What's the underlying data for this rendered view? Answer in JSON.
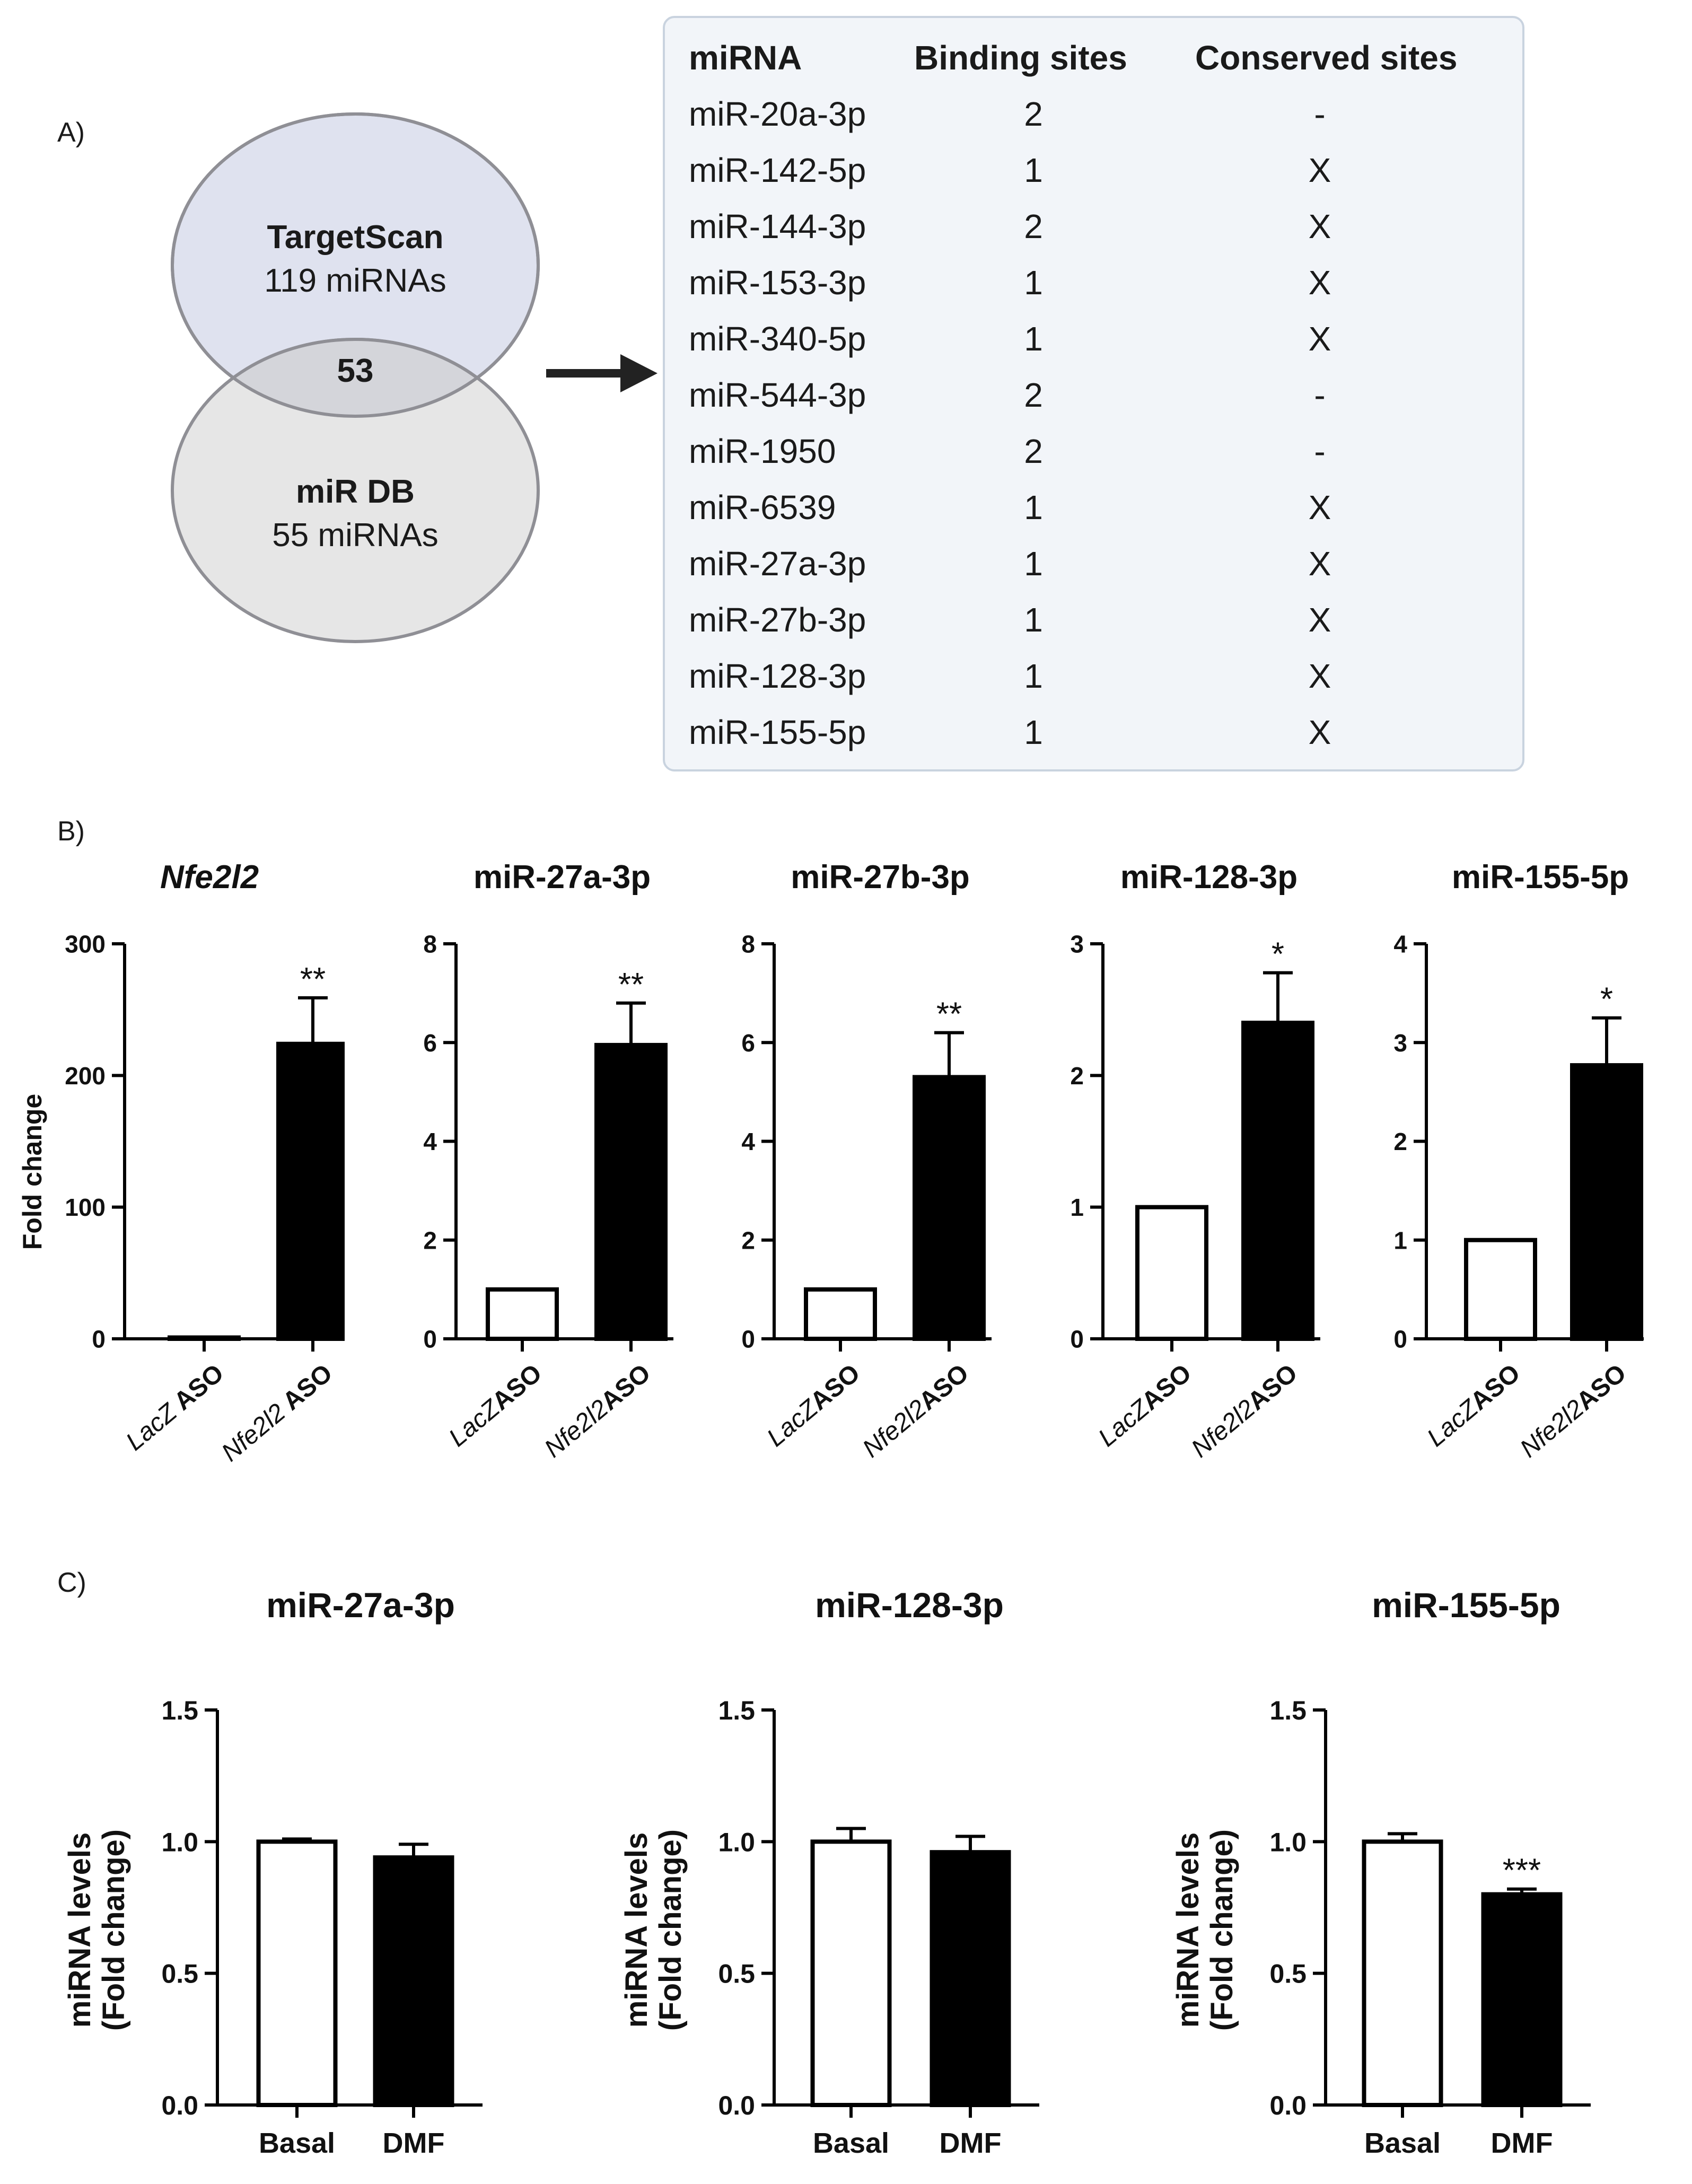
{
  "panels": {
    "a": "A)",
    "b": "B)",
    "c": "C)"
  },
  "venn": {
    "top_title": "TargetScan",
    "top_sub": "119 miRNAs",
    "overlap": "53",
    "bottom_title": "miR DB",
    "bottom_sub": "55 miRNAs"
  },
  "table": {
    "headers": [
      "miRNA",
      "Binding sites",
      "Conserved sites"
    ],
    "rows": [
      [
        "miR-20a-3p",
        "2",
        "-"
      ],
      [
        "miR-142-5p",
        "1",
        "X"
      ],
      [
        "miR-144-3p",
        "2",
        "X"
      ],
      [
        "miR-153-3p",
        "1",
        "X"
      ],
      [
        "miR-340-5p",
        "1",
        "X"
      ],
      [
        "miR-544-3p",
        "2",
        "-"
      ],
      [
        "miR-1950",
        "2",
        "-"
      ],
      [
        "miR-6539",
        "1",
        "X"
      ],
      [
        "miR-27a-3p",
        "1",
        "X"
      ],
      [
        "miR-27b-3p",
        "1",
        "X"
      ],
      [
        "miR-128-3p",
        "1",
        "X"
      ],
      [
        "miR-155-5p",
        "1",
        "X"
      ]
    ]
  },
  "chart_data": [
    {
      "id": "b1",
      "type": "bar",
      "title": "Nfe2l2",
      "title_italic": true,
      "ylabel": "Fold change",
      "ylim": [
        0,
        300
      ],
      "yticks": [
        0,
        100,
        200,
        300
      ],
      "categories": [
        "LacZ ASO",
        "Nfe2l2 ASO"
      ],
      "category_parts": [
        [
          "LacZ",
          " ASO"
        ],
        [
          "Nfe2l2",
          " ASO"
        ]
      ],
      "values": [
        1,
        224
      ],
      "errors": [
        0,
        35
      ],
      "significance": [
        "",
        "**"
      ],
      "fills": [
        "#ffffff",
        "#000000"
      ]
    },
    {
      "id": "b2",
      "type": "bar",
      "title": "miR-27a-3p",
      "ylabel": "",
      "ylim": [
        0,
        8
      ],
      "yticks": [
        0,
        2,
        4,
        6,
        8
      ],
      "categories": [
        "LacZASO",
        "Nfe2l2ASO"
      ],
      "category_parts": [
        [
          "LacZ",
          "ASO"
        ],
        [
          "Nfe2l2",
          "ASO"
        ]
      ],
      "values": [
        1,
        5.95
      ],
      "errors": [
        0,
        0.85
      ],
      "significance": [
        "",
        "**"
      ],
      "fills": [
        "#ffffff",
        "#000000"
      ]
    },
    {
      "id": "b3",
      "type": "bar",
      "title": "miR-27b-3p",
      "ylabel": "",
      "ylim": [
        0,
        8
      ],
      "yticks": [
        0,
        2,
        4,
        6,
        8
      ],
      "categories": [
        "LacZASO",
        "Nfe2l2ASO"
      ],
      "category_parts": [
        [
          "LacZ",
          "ASO"
        ],
        [
          "Nfe2l2",
          "ASO"
        ]
      ],
      "values": [
        1,
        5.3
      ],
      "errors": [
        0,
        0.9
      ],
      "significance": [
        "",
        "**"
      ],
      "fills": [
        "#ffffff",
        "#000000"
      ]
    },
    {
      "id": "b4",
      "type": "bar",
      "title": "miR-128-3p",
      "ylabel": "",
      "ylim": [
        0,
        3
      ],
      "yticks": [
        0,
        1,
        2,
        3
      ],
      "categories": [
        "LacZASO",
        "Nfe2l2ASO"
      ],
      "category_parts": [
        [
          "LacZ",
          "ASO"
        ],
        [
          "Nfe2l2",
          "ASO"
        ]
      ],
      "values": [
        1,
        2.4
      ],
      "errors": [
        0,
        0.38
      ],
      "significance": [
        "",
        "*"
      ],
      "fills": [
        "#ffffff",
        "#000000"
      ]
    },
    {
      "id": "b5",
      "type": "bar",
      "title": "miR-155-5p",
      "ylabel": "",
      "ylim": [
        0,
        4
      ],
      "yticks": [
        0,
        1,
        2,
        3,
        4
      ],
      "categories": [
        "LacZASO",
        "Nfe2l2ASO"
      ],
      "category_parts": [
        [
          "LacZ",
          "ASO"
        ],
        [
          "Nfe2l2",
          "ASO"
        ]
      ],
      "values": [
        1,
        2.77
      ],
      "errors": [
        0,
        0.48
      ],
      "significance": [
        "",
        "*"
      ],
      "fills": [
        "#ffffff",
        "#000000"
      ]
    },
    {
      "id": "c1",
      "type": "bar",
      "title": "miR-27a-3p",
      "ylabel": [
        "miRNA levels",
        "(Fold change)"
      ],
      "ylim": [
        0,
        1.5
      ],
      "yticks": [
        0.0,
        0.5,
        1.0,
        1.5
      ],
      "ytick_labels": [
        "0.0",
        "0.5",
        "1.0",
        "1.5"
      ],
      "categories": [
        "Basal",
        "DMF"
      ],
      "values": [
        1.0,
        0.94
      ],
      "errors": [
        0.01,
        0.05
      ],
      "significance": [
        "",
        ""
      ],
      "fills": [
        "#ffffff",
        "#000000"
      ]
    },
    {
      "id": "c2",
      "type": "bar",
      "title": "miR-128-3p",
      "ylabel": [
        "miRNA levels",
        "(Fold change)"
      ],
      "ylim": [
        0,
        1.5
      ],
      "yticks": [
        0.0,
        0.5,
        1.0,
        1.5
      ],
      "ytick_labels": [
        "0.0",
        "0.5",
        "1.0",
        "1.5"
      ],
      "categories": [
        "Basal",
        "DMF"
      ],
      "values": [
        1.0,
        0.96
      ],
      "errors": [
        0.05,
        0.06
      ],
      "significance": [
        "",
        ""
      ],
      "fills": [
        "#ffffff",
        "#000000"
      ]
    },
    {
      "id": "c3",
      "type": "bar",
      "title": "miR-155-5p",
      "ylabel": [
        "miRNA levels",
        "(Fold change)"
      ],
      "ylim": [
        0,
        1.5
      ],
      "yticks": [
        0.0,
        0.5,
        1.0,
        1.5
      ],
      "ytick_labels": [
        "0.0",
        "0.5",
        "1.0",
        "1.5"
      ],
      "categories": [
        "Basal",
        "DMF"
      ],
      "values": [
        1.0,
        0.8
      ],
      "errors": [
        0.03,
        0.02
      ],
      "significance": [
        "",
        "***"
      ],
      "fills": [
        "#ffffff",
        "#000000"
      ]
    }
  ]
}
